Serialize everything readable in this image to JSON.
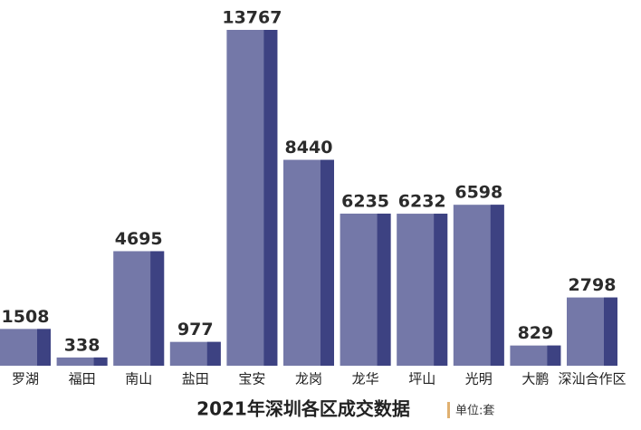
{
  "chart_data": {
    "type": "bar",
    "title": "2021年深圳各区成交数据",
    "unit": "单位:套",
    "categories": [
      "罗湖",
      "福田",
      "南山",
      "盐田",
      "宝安",
      "龙岗",
      "龙华",
      "坪山",
      "光明",
      "大鹏",
      "深汕合作区"
    ],
    "values": [
      1508,
      338,
      4695,
      977,
      13767,
      8440,
      6235,
      6232,
      6598,
      829,
      2798
    ],
    "color": "#7478a8"
  }
}
